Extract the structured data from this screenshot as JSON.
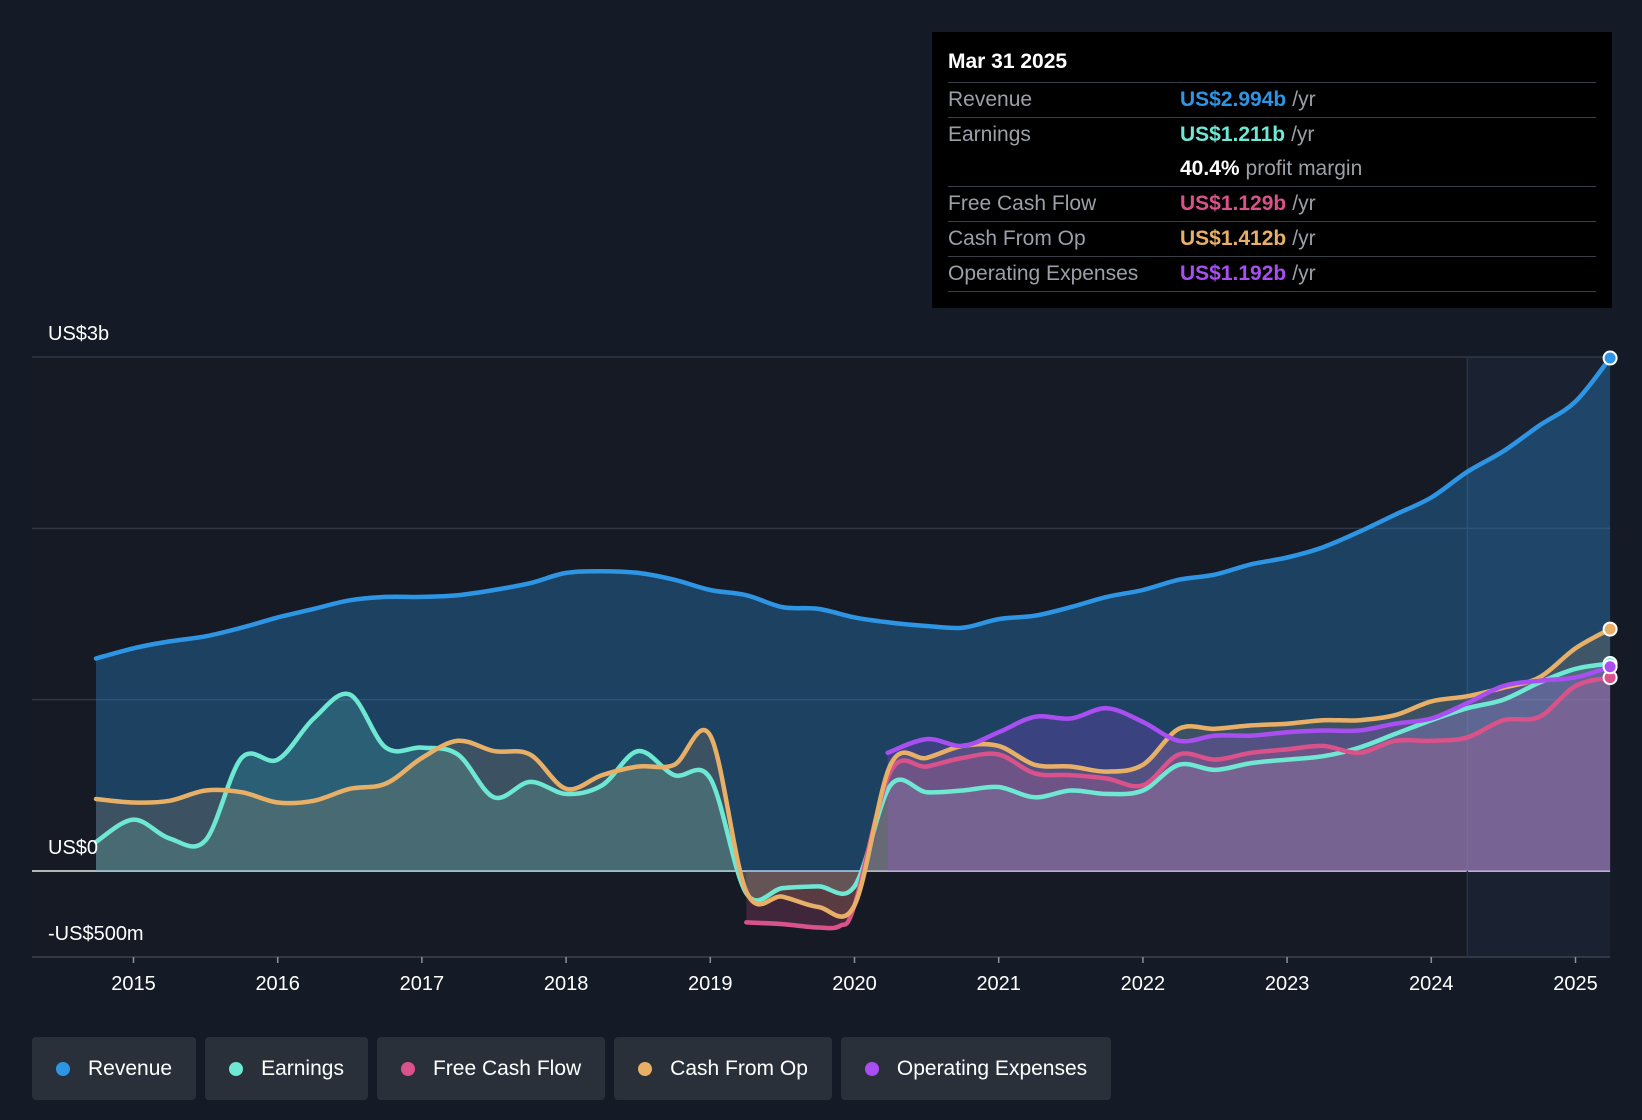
{
  "tooltip": {
    "date": "Mar 31 2025",
    "rows": [
      {
        "label": "Revenue",
        "value": "US$2.994b",
        "unit": "/yr",
        "color": "#2d95e3"
      },
      {
        "label": "Earnings",
        "value": "US$1.211b",
        "unit": "/yr",
        "color": "#6ee7d3"
      },
      {
        "label": "",
        "value": "40.4%",
        "unit": "profit margin",
        "color": "#ffffff"
      },
      {
        "label": "Free Cash Flow",
        "value": "US$1.129b",
        "unit": "/yr",
        "color": "#d9528a"
      },
      {
        "label": "Cash From Op",
        "value": "US$1.412b",
        "unit": "/yr",
        "color": "#e8b067"
      },
      {
        "label": "Operating Expenses",
        "value": "US$1.192b",
        "unit": "/yr",
        "color": "#a94ef0"
      }
    ]
  },
  "legend": [
    {
      "label": "Revenue",
      "color": "#2d95e3"
    },
    {
      "label": "Earnings",
      "color": "#6ee7d3"
    },
    {
      "label": "Free Cash Flow",
      "color": "#d9528a"
    },
    {
      "label": "Cash From Op",
      "color": "#e8b067"
    },
    {
      "label": "Operating Expenses",
      "color": "#a94ef0"
    }
  ],
  "chart_data": {
    "type": "line",
    "title": "",
    "xlabel": "",
    "ylabel": "",
    "y_axis_labels": [
      "US$3b",
      "US$0",
      "-US$500m"
    ],
    "ylim": [
      -500,
      3000
    ],
    "y_unit": "US$m",
    "xlim": [
      2014.74,
      2025.24
    ],
    "x_ticks": [
      2015,
      2016,
      2017,
      2018,
      2019,
      2020,
      2021,
      2022,
      2023,
      2024,
      2025
    ],
    "x_tick_labels": [
      "2015",
      "2016",
      "2017",
      "2018",
      "2019",
      "2020",
      "2021",
      "2022",
      "2023",
      "2024",
      "2025"
    ],
    "forecast_start": 2024.25,
    "series": [
      {
        "name": "Revenue",
        "color": "#2d95e3",
        "x": [
          2014.74,
          2015.0,
          2015.25,
          2015.5,
          2015.75,
          2016.0,
          2016.25,
          2016.5,
          2016.75,
          2017.0,
          2017.25,
          2017.5,
          2017.75,
          2018.0,
          2018.25,
          2018.5,
          2018.75,
          2019.0,
          2019.25,
          2019.5,
          2019.75,
          2020.0,
          2020.25,
          2020.5,
          2020.75,
          2021.0,
          2021.25,
          2021.5,
          2021.75,
          2022.0,
          2022.25,
          2022.5,
          2022.75,
          2023.0,
          2023.25,
          2023.5,
          2023.75,
          2024.0,
          2024.25,
          2024.5,
          2024.75,
          2025.0,
          2025.24
        ],
        "values": [
          1240,
          1300,
          1340,
          1370,
          1420,
          1480,
          1530,
          1580,
          1600,
          1600,
          1610,
          1640,
          1680,
          1740,
          1750,
          1740,
          1700,
          1640,
          1610,
          1540,
          1530,
          1480,
          1450,
          1430,
          1420,
          1470,
          1490,
          1540,
          1600,
          1640,
          1700,
          1730,
          1790,
          1830,
          1890,
          1980,
          2080,
          2180,
          2330,
          2450,
          2600,
          2740,
          2994
        ]
      },
      {
        "name": "Earnings",
        "color": "#6ee7d3",
        "x": [
          2014.74,
          2015.0,
          2015.25,
          2015.5,
          2015.75,
          2016.0,
          2016.25,
          2016.5,
          2016.75,
          2017.0,
          2017.25,
          2017.5,
          2017.75,
          2018.0,
          2018.25,
          2018.5,
          2018.75,
          2019.0,
          2019.25,
          2019.5,
          2019.75,
          2020.0,
          2020.25,
          2020.5,
          2020.75,
          2021.0,
          2021.25,
          2021.5,
          2021.75,
          2022.0,
          2022.25,
          2022.5,
          2022.75,
          2023.0,
          2023.25,
          2023.5,
          2023.75,
          2024.0,
          2024.25,
          2024.5,
          2024.75,
          2025.0,
          2025.24
        ],
        "values": [
          170,
          300,
          190,
          180,
          660,
          650,
          890,
          1030,
          720,
          720,
          680,
          430,
          520,
          450,
          500,
          700,
          560,
          540,
          -130,
          -100,
          -90,
          -90,
          500,
          460,
          470,
          490,
          430,
          470,
          450,
          470,
          620,
          590,
          630,
          650,
          670,
          720,
          800,
          880,
          950,
          1000,
          1100,
          1180,
          1211
        ]
      },
      {
        "name": "Free Cash Flow",
        "color": "#d9528a",
        "x": [
          2019.25,
          2019.5,
          2019.75,
          2019.9,
          2020.0,
          2020.25,
          2020.5,
          2020.75,
          2021.0,
          2021.25,
          2021.5,
          2021.75,
          2022.0,
          2022.25,
          2022.5,
          2022.75,
          2023.0,
          2023.25,
          2023.5,
          2023.75,
          2024.0,
          2024.25,
          2024.5,
          2024.75,
          2025.0,
          2025.24
        ],
        "values": [
          -300,
          -310,
          -330,
          -320,
          -200,
          580,
          610,
          660,
          680,
          570,
          560,
          540,
          500,
          680,
          650,
          690,
          710,
          730,
          690,
          760,
          760,
          780,
          880,
          900,
          1080,
          1129
        ]
      },
      {
        "name": "Cash From Op",
        "color": "#e8b067",
        "x": [
          2014.74,
          2015.0,
          2015.25,
          2015.5,
          2015.75,
          2016.0,
          2016.25,
          2016.5,
          2016.75,
          2017.0,
          2017.25,
          2017.5,
          2017.75,
          2018.0,
          2018.25,
          2018.5,
          2018.75,
          2019.0,
          2019.25,
          2019.5,
          2019.75,
          2020.0,
          2020.25,
          2020.5,
          2020.75,
          2021.0,
          2021.25,
          2021.5,
          2021.75,
          2022.0,
          2022.25,
          2022.5,
          2022.75,
          2023.0,
          2023.25,
          2023.5,
          2023.75,
          2024.0,
          2024.25,
          2024.5,
          2024.75,
          2025.0,
          2025.24
        ],
        "values": [
          420,
          400,
          410,
          470,
          460,
          400,
          410,
          480,
          510,
          660,
          760,
          700,
          680,
          480,
          560,
          610,
          620,
          790,
          -120,
          -150,
          -210,
          -200,
          620,
          660,
          730,
          730,
          620,
          610,
          580,
          620,
          830,
          830,
          850,
          860,
          880,
          880,
          910,
          990,
          1020,
          1070,
          1130,
          1300,
          1412
        ]
      },
      {
        "name": "Operating Expenses",
        "color": "#a94ef0",
        "x": [
          2020.23,
          2020.5,
          2020.75,
          2021.0,
          2021.25,
          2021.5,
          2021.75,
          2022.0,
          2022.25,
          2022.5,
          2022.75,
          2023.0,
          2023.25,
          2023.5,
          2023.75,
          2024.0,
          2024.25,
          2024.5,
          2024.75,
          2025.0,
          2025.24
        ],
        "values": [
          690,
          770,
          730,
          810,
          900,
          890,
          950,
          870,
          760,
          790,
          790,
          810,
          820,
          820,
          860,
          890,
          980,
          1080,
          1110,
          1130,
          1192
        ]
      }
    ]
  }
}
